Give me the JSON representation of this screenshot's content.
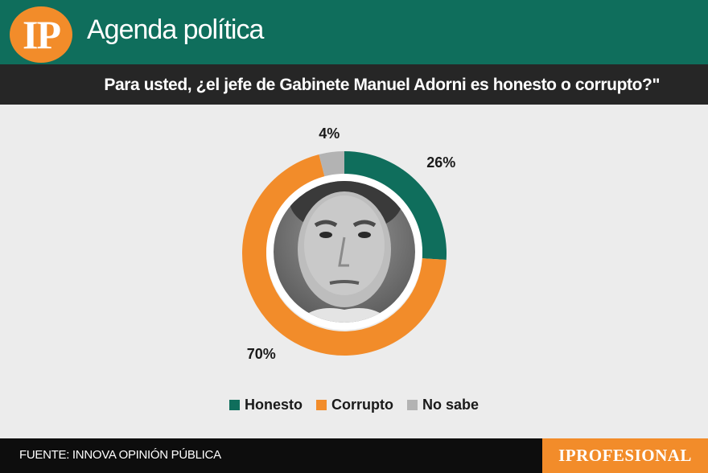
{
  "header": {
    "logo_text": "IP",
    "section_title": "Agenda política"
  },
  "question": "Para usted, ¿el jefe de Gabinete Manuel Adorni es honesto o corrupto?\"",
  "chart_data": {
    "type": "pie",
    "donut": true,
    "categories": [
      "Honesto",
      "Corrupto",
      "No sabe"
    ],
    "values": [
      26,
      70,
      4
    ],
    "value_labels": [
      "26%",
      "70%",
      "4%"
    ],
    "colors": [
      "#0f6e5c",
      "#f28c2a",
      "#b3b3b3"
    ],
    "legend_position": "bottom-center",
    "center": "photo-portrait"
  },
  "footer": {
    "source": "FUENTE: INNOVA OPINIÓN PÚBLICA",
    "brand": "IPROFESIONAL"
  }
}
